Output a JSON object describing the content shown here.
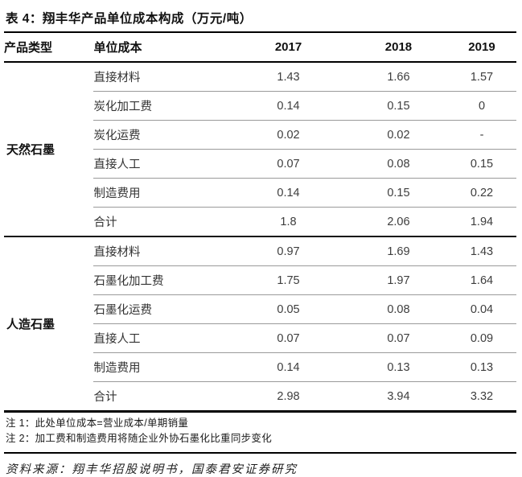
{
  "title": "表 4：翔丰华产品单位成本构成（万元/吨）",
  "table": {
    "headers": {
      "product_type": "产品类型",
      "unit_cost": "单位成本",
      "y2017": "2017",
      "y2018": "2018",
      "y2019": "2019"
    },
    "groups": [
      {
        "type": "天然石墨",
        "rows": [
          {
            "label": "直接材料",
            "values": [
              "1.43",
              "1.66",
              "1.57"
            ]
          },
          {
            "label": "炭化加工费",
            "values": [
              "0.14",
              "0.15",
              "0"
            ]
          },
          {
            "label": "炭化运费",
            "values": [
              "0.02",
              "0.02",
              "-"
            ]
          },
          {
            "label": "直接人工",
            "values": [
              "0.07",
              "0.08",
              "0.15"
            ]
          },
          {
            "label": "制造费用",
            "values": [
              "0.14",
              "0.15",
              "0.22"
            ]
          },
          {
            "label": "合计",
            "values": [
              "1.8",
              "2.06",
              "1.94"
            ]
          }
        ]
      },
      {
        "type": "人造石墨",
        "rows": [
          {
            "label": "直接材料",
            "values": [
              "0.97",
              "1.69",
              "1.43"
            ]
          },
          {
            "label": "石墨化加工费",
            "values": [
              "1.75",
              "1.97",
              "1.64"
            ]
          },
          {
            "label": "石墨化运费",
            "values": [
              "0.05",
              "0.08",
              "0.04"
            ]
          },
          {
            "label": "直接人工",
            "values": [
              "0.07",
              "0.07",
              "0.09"
            ]
          },
          {
            "label": "制造费用",
            "values": [
              "0.14",
              "0.13",
              "0.13"
            ]
          },
          {
            "label": "合计",
            "values": [
              "2.98",
              "3.94",
              "3.32"
            ]
          }
        ]
      }
    ]
  },
  "notes": [
    "注 1：此处单位成本=营业成本/单期销量",
    "注 2：加工费和制造费用将随企业外协石墨化比重同步变化"
  ],
  "source": "资料来源：翔丰华招股说明书，国泰君安证券研究",
  "colors": {
    "heavy_rule": "#000000",
    "light_rule": "#9a9a9a",
    "text": "#3d3d3d",
    "bold_text": "#111111"
  }
}
